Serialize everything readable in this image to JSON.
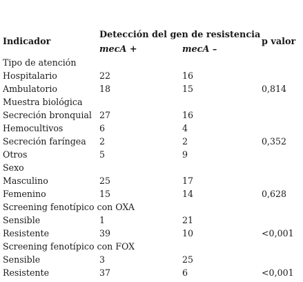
{
  "table": {
    "headers": {
      "indicator": "Indicador",
      "detection": "Detección del gen de resistencia",
      "mec_pos": "mecA +",
      "mec_neg": "mecA –",
      "p_value": "p valor"
    },
    "groups": [
      {
        "title": "Tipo de atención",
        "rows": [
          {
            "label": "Hospitalario",
            "pos": "22",
            "neg": "16"
          },
          {
            "label": "Ambulatorio",
            "pos": "18",
            "neg": "15"
          }
        ],
        "p": "0,814"
      },
      {
        "title": "Muestra biológica",
        "rows": [
          {
            "label": "Secreción bronquial",
            "pos": "27",
            "neg": "16"
          },
          {
            "label": "Hemocultivos",
            "pos": "6",
            "neg": "4"
          },
          {
            "label": "Secreción faríngea",
            "pos": "2",
            "neg": "2"
          },
          {
            "label": "Otros",
            "pos": "5",
            "neg": "9"
          }
        ],
        "p": "0,352"
      },
      {
        "title": "Sexo",
        "rows": [
          {
            "label": "Masculino",
            "pos": "25",
            "neg": "17"
          },
          {
            "label": "Femenino",
            "pos": "15",
            "neg": "14"
          }
        ],
        "p": "0,628"
      },
      {
        "title": "Screening fenotípico con OXA",
        "rows": [
          {
            "label": "Sensible",
            "pos": "1",
            "neg": "21"
          },
          {
            "label": "Resistente",
            "pos": "39",
            "neg": "10"
          }
        ],
        "p": "<0,001"
      },
      {
        "title": "Screening fenotípico con FOX",
        "rows": [
          {
            "label": "Sensible",
            "pos": "3",
            "neg": "25"
          },
          {
            "label": "Resistente",
            "pos": "37",
            "neg": "6"
          }
        ],
        "p": "<0,001"
      }
    ]
  }
}
